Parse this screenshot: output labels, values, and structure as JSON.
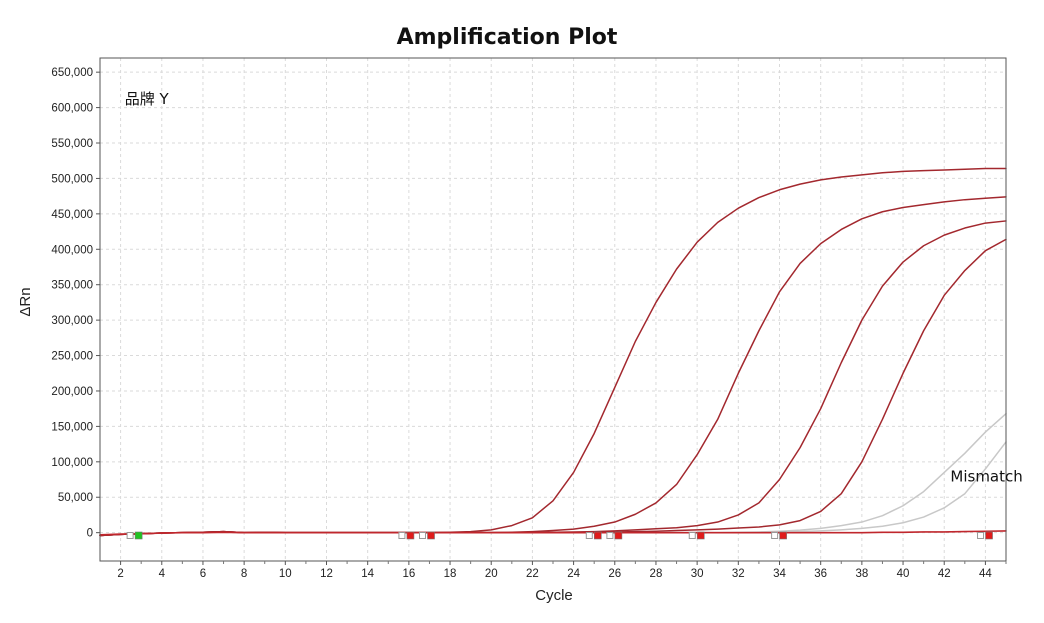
{
  "chart_data": {
    "type": "line",
    "title": "Amplification Plot",
    "xlabel": "Cycle",
    "ylabel": "ΔRn",
    "xlim": [
      1,
      45
    ],
    "ylim": [
      -40000,
      670000
    ],
    "x_ticks": [
      2,
      4,
      6,
      8,
      10,
      12,
      14,
      16,
      18,
      20,
      22,
      24,
      26,
      28,
      30,
      32,
      34,
      36,
      38,
      40,
      42,
      44
    ],
    "y_ticks": [
      0,
      50000,
      100000,
      150000,
      200000,
      250000,
      300000,
      350000,
      400000,
      450000,
      500000,
      550000,
      600000,
      650000
    ],
    "y_tick_labels": [
      "0",
      "50,000",
      "100,000",
      "150,000",
      "200,000",
      "250,000",
      "300,000",
      "350,000",
      "400,000",
      "450,000",
      "500,000",
      "550,000",
      "600,000",
      "650,000"
    ],
    "grid": true,
    "annotations": [
      {
        "text": "品牌 Y",
        "x": 2.2,
        "y": 605000
      },
      {
        "text": "Mismatch",
        "x": 42.3,
        "y": 72000
      }
    ],
    "colors": {
      "amplified": "#a3282e",
      "mismatch": "#c8c8c8",
      "grid": "#dadada",
      "baseline": "#c0272d"
    },
    "x": [
      1,
      2,
      3,
      4,
      5,
      6,
      7,
      8,
      9,
      10,
      11,
      12,
      13,
      14,
      15,
      16,
      17,
      18,
      19,
      20,
      21,
      22,
      23,
      24,
      25,
      26,
      27,
      28,
      29,
      30,
      31,
      32,
      33,
      34,
      35,
      36,
      37,
      38,
      39,
      40,
      41,
      42,
      43,
      44,
      45
    ],
    "series": [
      {
        "group": "amplified",
        "values": [
          -4000,
          -2500,
          -1500,
          -500,
          0,
          500,
          1500,
          0,
          500,
          0,
          0,
          0,
          0,
          0,
          0,
          0,
          0,
          500,
          1500,
          4000,
          10000,
          21000,
          45000,
          85000,
          140000,
          205000,
          270000,
          325000,
          372000,
          410000,
          438000,
          458000,
          473000,
          484000,
          492000,
          498000,
          502000,
          505000,
          508000,
          510000,
          511000,
          512000,
          513000,
          514000,
          514000
        ]
      },
      {
        "group": "amplified",
        "values": [
          -4000,
          -2500,
          -1500,
          -500,
          0,
          500,
          1500,
          0,
          500,
          0,
          0,
          0,
          0,
          0,
          0,
          0,
          0,
          0,
          0,
          0,
          500,
          1500,
          3000,
          5000,
          9000,
          15000,
          26000,
          42000,
          68000,
          110000,
          160000,
          225000,
          285000,
          340000,
          380000,
          408000,
          428000,
          443000,
          453000,
          459000,
          463000,
          467000,
          470000,
          472000,
          474000
        ]
      },
      {
        "group": "amplified",
        "values": [
          -4000,
          -2500,
          -1500,
          -500,
          0,
          500,
          1500,
          0,
          500,
          0,
          0,
          0,
          0,
          0,
          0,
          0,
          0,
          0,
          0,
          0,
          0,
          0,
          500,
          1000,
          1500,
          2500,
          4000,
          5500,
          7000,
          10000,
          15000,
          25000,
          42000,
          75000,
          120000,
          175000,
          240000,
          300000,
          348000,
          382000,
          405000,
          420000,
          430000,
          437000,
          440000
        ]
      },
      {
        "group": "amplified",
        "values": [
          -4000,
          -2500,
          -1500,
          -500,
          0,
          500,
          1500,
          0,
          500,
          0,
          0,
          0,
          0,
          0,
          0,
          0,
          0,
          0,
          0,
          0,
          0,
          0,
          0,
          0,
          500,
          1000,
          1500,
          2000,
          3000,
          4000,
          5000,
          6500,
          8000,
          11000,
          17000,
          30000,
          55000,
          100000,
          160000,
          225000,
          285000,
          335000,
          370000,
          398000,
          414000
        ]
      },
      {
        "group": "mismatch",
        "values": [
          -4000,
          -2500,
          -1500,
          -500,
          0,
          500,
          1000,
          0,
          500,
          0,
          0,
          0,
          0,
          0,
          0,
          0,
          0,
          0,
          0,
          0,
          0,
          0,
          0,
          0,
          0,
          0,
          0,
          0,
          0,
          0,
          0,
          500,
          1000,
          2000,
          3500,
          6000,
          10000,
          15000,
          24000,
          38000,
          58000,
          85000,
          112000,
          142000,
          168000
        ]
      },
      {
        "group": "mismatch",
        "values": [
          -4000,
          -2500,
          -1500,
          -500,
          0,
          500,
          1000,
          0,
          500,
          0,
          0,
          0,
          0,
          0,
          0,
          0,
          0,
          0,
          0,
          0,
          0,
          0,
          0,
          0,
          0,
          0,
          0,
          0,
          0,
          0,
          0,
          0,
          500,
          1000,
          1500,
          2500,
          4000,
          6000,
          9000,
          14000,
          22000,
          35000,
          55000,
          90000,
          128000
        ]
      },
      {
        "group": "baseline",
        "values": [
          -3000,
          -2000,
          -1500,
          -500,
          0,
          0,
          500,
          0,
          0,
          0,
          0,
          0,
          0,
          0,
          0,
          0,
          0,
          0,
          0,
          0,
          0,
          0,
          0,
          0,
          0,
          0,
          0,
          0,
          0,
          0,
          0,
          0,
          0,
          0,
          0,
          0,
          0,
          0,
          500,
          500,
          1000,
          1000,
          1500,
          2000,
          2500
        ]
      }
    ],
    "markers": [
      {
        "x": 2.9,
        "y": -4000,
        "color": "#22c322"
      },
      {
        "x": 16.1,
        "y": -4000,
        "color": "#e01b1b"
      },
      {
        "x": 17.1,
        "y": -4000,
        "color": "#e01b1b"
      },
      {
        "x": 25.2,
        "y": -4000,
        "color": "#e01b1b"
      },
      {
        "x": 26.2,
        "y": -4000,
        "color": "#e01b1b"
      },
      {
        "x": 30.2,
        "y": -4000,
        "color": "#e01b1b"
      },
      {
        "x": 34.2,
        "y": -4000,
        "color": "#e01b1b"
      },
      {
        "x": 44.2,
        "y": -4000,
        "color": "#e01b1b"
      }
    ]
  }
}
